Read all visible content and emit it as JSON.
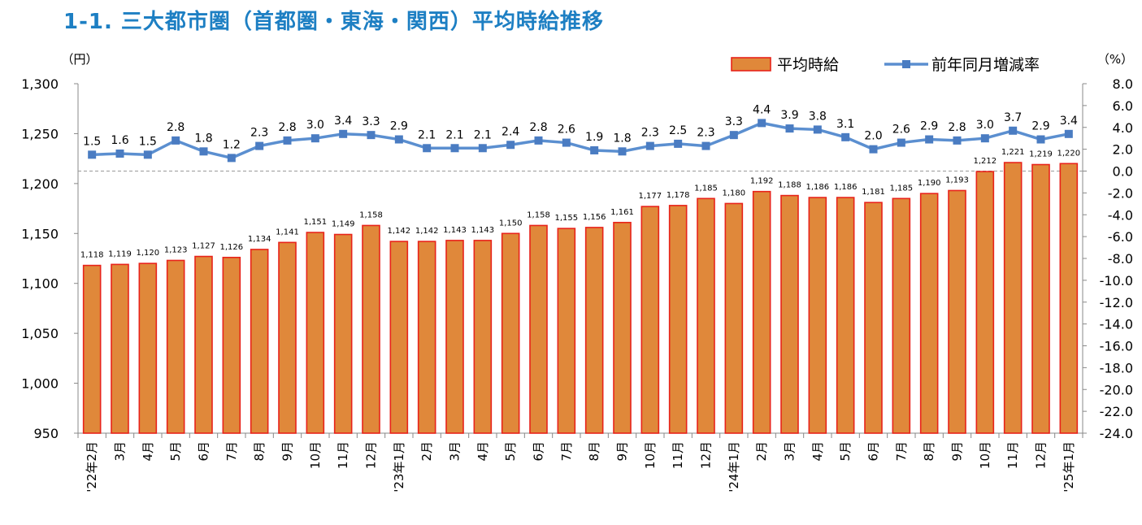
{
  "title": "1-1. 三大都市圏（首都圏・東海・関西）平均時給推移",
  "colors": {
    "title": "#1d7fc3",
    "bar_fill": "#e0883a",
    "bar_stroke": "#e8231a",
    "line": "#5b8fd0",
    "marker": "#4a7cc2"
  },
  "chart_data": {
    "type": "bar",
    "categories": [
      "'22年2月",
      "3月",
      "4月",
      "5月",
      "6月",
      "7月",
      "8月",
      "9月",
      "10月",
      "11月",
      "12月",
      "'23年1月",
      "2月",
      "3月",
      "4月",
      "5月",
      "6月",
      "7月",
      "8月",
      "9月",
      "10月",
      "11月",
      "12月",
      "'24年1月",
      "2月",
      "3月",
      "4月",
      "5月",
      "6月",
      "7月",
      "8月",
      "9月",
      "10月",
      "11月",
      "12月",
      "'25年1月"
    ],
    "series": [
      {
        "name": "平均時給",
        "type": "bar",
        "axis": "left",
        "values": [
          1118,
          1119,
          1120,
          1123,
          1127,
          1126,
          1134,
          1141,
          1151,
          1149,
          1158,
          1142,
          1142,
          1143,
          1143,
          1150,
          1158,
          1155,
          1156,
          1161,
          1177,
          1178,
          1185,
          1180,
          1192,
          1188,
          1186,
          1186,
          1181,
          1185,
          1190,
          1193,
          1212,
          1221,
          1219,
          1220
        ],
        "labels": [
          "1,118",
          "1,119",
          "1,120",
          "1,123",
          "1,127",
          "1,126",
          "1,134",
          "1,141",
          "1,151",
          "1,149",
          "1,158",
          "1,142",
          "1,142",
          "1,143",
          "1,143",
          "1,150",
          "1,158",
          "1,155",
          "1,156",
          "1,161",
          "1,177",
          "1,178",
          "1,185",
          "1,180",
          "1,192",
          "1,188",
          "1,186",
          "1,186",
          "1,181",
          "1,185",
          "1,190",
          "1,193",
          "1,212",
          "1,221",
          "1,219",
          "1,220"
        ]
      },
      {
        "name": "前年同月増減率",
        "type": "line",
        "axis": "right",
        "values": [
          1.5,
          1.6,
          1.5,
          2.8,
          1.8,
          1.2,
          2.3,
          2.8,
          3.0,
          3.4,
          3.3,
          2.9,
          2.1,
          2.1,
          2.1,
          2.4,
          2.8,
          2.6,
          1.9,
          1.8,
          2.3,
          2.5,
          2.3,
          3.3,
          4.4,
          3.9,
          3.8,
          3.1,
          2.0,
          2.6,
          2.9,
          2.8,
          3.0,
          3.7,
          2.9,
          3.4
        ],
        "labels": [
          "1.5",
          "1.6",
          "1.5",
          "2.8",
          "1.8",
          "1.2",
          "2.3",
          "2.8",
          "3.0",
          "3.4",
          "3.3",
          "2.9",
          "2.1",
          "2.1",
          "2.1",
          "2.4",
          "2.8",
          "2.6",
          "1.9",
          "1.8",
          "2.3",
          "2.5",
          "2.3",
          "3.3",
          "4.4",
          "3.9",
          "3.8",
          "3.1",
          "2.0",
          "2.6",
          "2.9",
          "2.8",
          "3.0",
          "3.7",
          "2.9",
          "3.4"
        ]
      }
    ],
    "y_left": {
      "unit_label": "（円）",
      "range": [
        950,
        1300
      ],
      "ticks": [
        950,
        1000,
        1050,
        1100,
        1150,
        1200,
        1250,
        1300
      ],
      "tick_labels": [
        "950",
        "1,000",
        "1,050",
        "1,100",
        "1,150",
        "1,200",
        "1,250",
        "1,300"
      ]
    },
    "y_right": {
      "unit_label": "（%）",
      "range": [
        -24,
        8
      ],
      "ticks": [
        8,
        6,
        4,
        2,
        0,
        -2,
        -4,
        -6,
        -8,
        -10,
        -12,
        -14,
        -16,
        -18,
        -20,
        -22,
        -24
      ],
      "tick_labels": [
        "8.0",
        "6.0",
        "4.0",
        "2.0",
        "0.0",
        "-2.0",
        "-4.0",
        "-6.0",
        "-8.0",
        "-10.0",
        "-12.0",
        "-14.0",
        "-16.0",
        "-18.0",
        "-20.0",
        "-22.0",
        "-24.0"
      ]
    },
    "zero_reference_line": true,
    "grid": false,
    "legend_position": "top-right"
  }
}
